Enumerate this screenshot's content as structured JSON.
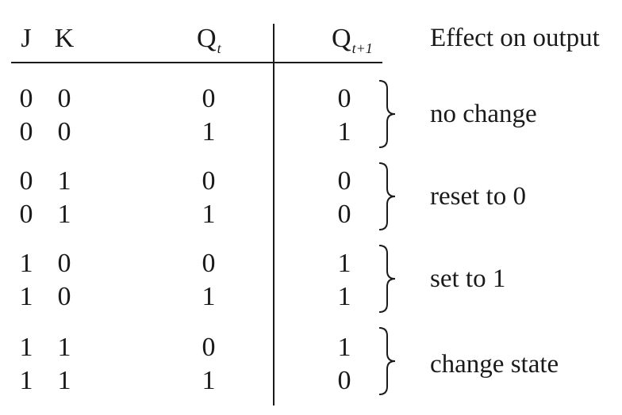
{
  "headers": {
    "j": "J",
    "k": "K",
    "qt_main": "Q",
    "qt_sub": "t",
    "qn_main": "Q",
    "qn_sub": "t+1",
    "effect": "Effect on output"
  },
  "rows": [
    {
      "j": "0",
      "k": "0",
      "qt": "0",
      "qn": "0"
    },
    {
      "j": "0",
      "k": "0",
      "qt": "1",
      "qn": "1"
    },
    {
      "j": "0",
      "k": "1",
      "qt": "0",
      "qn": "0"
    },
    {
      "j": "0",
      "k": "1",
      "qt": "1",
      "qn": "0"
    },
    {
      "j": "1",
      "k": "0",
      "qt": "0",
      "qn": "1"
    },
    {
      "j": "1",
      "k": "0",
      "qt": "1",
      "qn": "1"
    },
    {
      "j": "1",
      "k": "1",
      "qt": "0",
      "qn": "1"
    },
    {
      "j": "1",
      "k": "1",
      "qt": "1",
      "qn": "0"
    }
  ],
  "effects": [
    "no change",
    "reset to 0",
    "set to 1",
    "change state"
  ]
}
